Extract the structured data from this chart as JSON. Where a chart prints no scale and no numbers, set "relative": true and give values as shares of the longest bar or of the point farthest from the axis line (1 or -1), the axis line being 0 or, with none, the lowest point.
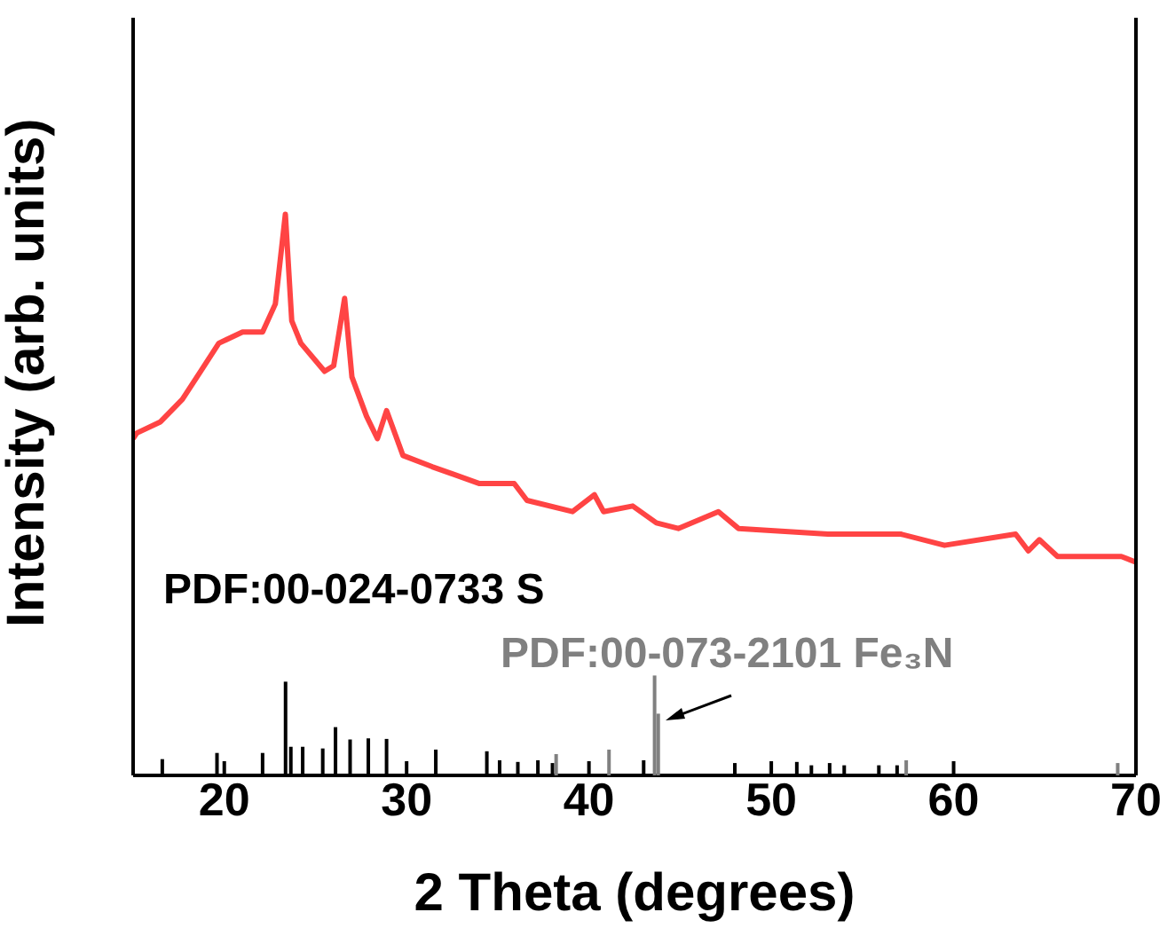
{
  "chart_data": {
    "type": "line",
    "relative": true,
    "xlabel": "2 Theta (degrees)",
    "ylabel": "Intensity (arb. units)",
    "xlim": [
      15,
      70
    ],
    "xticks": [
      20,
      30,
      40,
      50,
      60,
      70
    ],
    "tick_labels": "x",
    "marker": "none",
    "series": [
      {
        "color": "#ff4444",
        "x": [
          15.0,
          15.2,
          16.5,
          17.7,
          18.7,
          19.7,
          21.0,
          22.1,
          22.8,
          23.35,
          23.7,
          24.2,
          25.5,
          26.0,
          26.6,
          27.0,
          27.8,
          28.4,
          28.9,
          29.8,
          31.4,
          34.0,
          35.9,
          36.6,
          39.1,
          40.3,
          40.8,
          42.4,
          43.7,
          44.9,
          47.1,
          48.2,
          53.1,
          57.1,
          59.5,
          63.4,
          64.1,
          64.7,
          65.7,
          69.2,
          70.0
        ],
        "values": [
          0.6,
          0.61,
          0.63,
          0.67,
          0.72,
          0.77,
          0.79,
          0.79,
          0.84,
          1.0,
          0.81,
          0.77,
          0.72,
          0.73,
          0.85,
          0.71,
          0.64,
          0.6,
          0.65,
          0.57,
          0.55,
          0.52,
          0.52,
          0.49,
          0.47,
          0.5,
          0.47,
          0.48,
          0.45,
          0.44,
          0.47,
          0.44,
          0.43,
          0.43,
          0.41,
          0.43,
          0.4,
          0.42,
          0.39,
          0.39,
          0.38
        ]
      },
      {
        "type": "bar",
        "name": "PDF:00-024-0733 S",
        "color": "#000000",
        "x": [
          16.6,
          19.6,
          22.1,
          23.36,
          23.65,
          24.3,
          25.4,
          26.1,
          26.9,
          27.9,
          28.9,
          31.6,
          34.4,
          35.1,
          36.1,
          37.2,
          38.0,
          43.0,
          48.0,
          51.4,
          52.2,
          53.2,
          54.0,
          55.9,
          56.9
        ],
        "values": [
          0.029,
          0.04,
          0.04,
          0.167,
          0.051,
          0.051,
          0.048,
          0.086,
          0.064,
          0.066,
          0.065,
          0.046,
          0.043,
          0.027,
          0.024,
          0.027,
          0.022,
          0.027,
          0.022,
          0.024,
          0.018,
          0.022,
          0.018,
          0.018,
          0.018
        ]
      },
      {
        "type": "bar",
        "name": "PDF:00-073-2101 Fe₃N",
        "color": "#808080",
        "x": [
          38.2,
          41.1,
          43.6,
          43.8,
          57.4,
          69.0
        ],
        "values": [
          0.038,
          0.046,
          0.178,
          0.11,
          0.027,
          0.022
        ]
      }
    ]
  }
}
